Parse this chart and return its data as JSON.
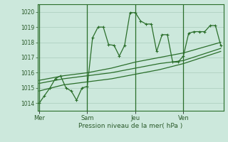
{
  "bg_color": "#cce8dc",
  "grid_color": "#aaccbb",
  "line_color": "#2a6e2a",
  "marker_color": "#2a6e2a",
  "title": "Pression niveau de la mer( hPa )",
  "ylim": [
    1013.5,
    1020.5
  ],
  "yticks": [
    1014,
    1015,
    1016,
    1017,
    1018,
    1019,
    1020
  ],
  "day_labels": [
    "Mer",
    "Sam",
    "Jeu",
    "Ven"
  ],
  "day_positions": [
    0,
    3,
    6,
    9
  ],
  "series1_x": [
    0,
    0.33,
    0.67,
    1.0,
    1.33,
    1.67,
    2.0,
    2.33,
    2.67,
    3.0,
    3.33,
    3.67,
    4.0,
    4.33,
    4.67,
    5.0,
    5.33,
    5.67,
    6.0,
    6.33,
    6.67,
    7.0,
    7.33,
    7.67,
    8.0,
    8.33,
    8.67,
    9.0,
    9.33,
    9.67,
    10.0,
    10.33,
    10.67,
    11.0,
    11.33
  ],
  "series1_y": [
    1014.0,
    1014.5,
    1015.0,
    1015.6,
    1015.8,
    1015.0,
    1014.8,
    1014.2,
    1015.0,
    1015.1,
    1018.3,
    1019.0,
    1019.0,
    1017.85,
    1017.8,
    1017.1,
    1017.8,
    1019.95,
    1019.95,
    1019.4,
    1019.2,
    1019.2,
    1017.4,
    1018.5,
    1018.5,
    1016.7,
    1016.7,
    1017.1,
    1018.6,
    1018.7,
    1018.7,
    1018.7,
    1019.1,
    1019.1,
    1017.8
  ],
  "series2_x": [
    0,
    1.5,
    3.0,
    4.5,
    6.0,
    7.5,
    9.0,
    11.33
  ],
  "series2_y": [
    1015.5,
    1015.8,
    1016.0,
    1016.3,
    1016.7,
    1017.0,
    1017.3,
    1018.0
  ],
  "series3_x": [
    0,
    1.5,
    3.0,
    4.5,
    6.0,
    7.5,
    9.0,
    11.33
  ],
  "series3_y": [
    1015.3,
    1015.6,
    1015.8,
    1016.0,
    1016.3,
    1016.6,
    1016.8,
    1017.6
  ],
  "series4_x": [
    0,
    1.5,
    3.0,
    4.5,
    6.0,
    7.5,
    9.0,
    11.33
  ],
  "series4_y": [
    1014.8,
    1015.2,
    1015.4,
    1015.6,
    1015.9,
    1016.2,
    1016.6,
    1017.4
  ],
  "xlim": [
    -0.1,
    11.5
  ]
}
